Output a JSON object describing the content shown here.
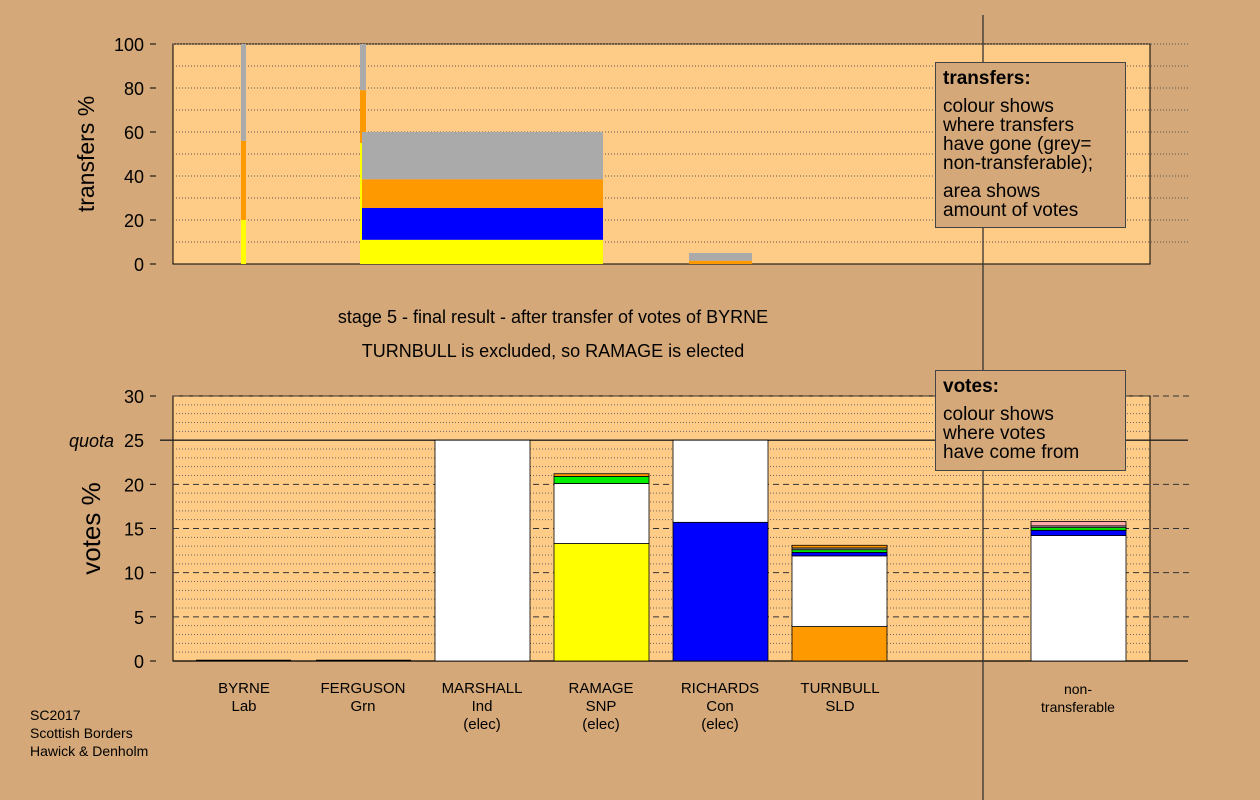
{
  "chart_data": [
    {
      "type": "bar",
      "stacked": true,
      "ylabel": "transfers %",
      "ylim": [
        0,
        100
      ],
      "yticks": [
        0,
        20,
        40,
        60,
        80,
        100
      ],
      "categories": [
        "BYRNE",
        "FERGUSON",
        "MARSHALL",
        "RAMAGE",
        "RICHARDS",
        "TURNBULL",
        "non-transferable"
      ],
      "bars": [
        {
          "category": "BYRNE",
          "segments": [
            {
              "color": "#ffff00",
              "value": 20
            },
            {
              "color": "#ff9900",
              "value": 36
            },
            {
              "color": "#aaaaaa",
              "value": 44
            }
          ]
        },
        {
          "category": "FERGUSON",
          "segments": [
            {
              "color": "#ffff00",
              "value": 55
            },
            {
              "color": "#ff9900",
              "value": 24
            },
            {
              "color": "#aaaaaa",
              "value": 21
            }
          ]
        },
        {
          "category": "TURNBULL",
          "segments": [
            {
              "color": "#ffff00",
              "value": 11
            },
            {
              "color": "#0000ff",
              "value": 14.5
            },
            {
              "color": "#ff9900",
              "value": 13
            },
            {
              "color": "#aaaaaa",
              "value": 21.5
            }
          ]
        },
        {
          "category": "non-transferable",
          "segments": [
            {
              "color": "#ff9900",
              "value": 1.5
            },
            {
              "color": "#aaaaaa",
              "value": 3.5
            }
          ]
        }
      ]
    },
    {
      "type": "bar",
      "stacked": true,
      "ylabel": "votes %",
      "ylim": [
        0,
        30
      ],
      "yticks": [
        0,
        5,
        10,
        15,
        20,
        25,
        30
      ],
      "quota": 25,
      "quota_label": "quota",
      "categories": [
        "BYRNE",
        "FERGUSON",
        "MARSHALL",
        "RAMAGE",
        "RICHARDS",
        "TURNBULL",
        "non-transferable"
      ],
      "bars": [
        {
          "category": "BYRNE",
          "segments": [
            {
              "color": "#ffffff",
              "value": 0
            }
          ]
        },
        {
          "category": "FERGUSON",
          "segments": [
            {
              "color": "#ffffff",
              "value": 0
            }
          ]
        },
        {
          "category": "MARSHALL",
          "segments": [
            {
              "color": "#ffffff",
              "value": 25
            }
          ]
        },
        {
          "category": "RAMAGE",
          "segments": [
            {
              "color": "#ffff00",
              "value": 13.3
            },
            {
              "color": "#ffffff",
              "value": 6.8
            },
            {
              "color": "#00ee00",
              "value": 0.8
            },
            {
              "color": "#ff9900",
              "value": 0.3
            }
          ]
        },
        {
          "category": "RICHARDS",
          "segments": [
            {
              "color": "#0000ff",
              "value": 15.7
            },
            {
              "color": "#ffffff",
              "value": 9.3
            }
          ]
        },
        {
          "category": "TURNBULL",
          "segments": [
            {
              "color": "#ff9900",
              "value": 3.9
            },
            {
              "color": "#ffffff",
              "value": 8.0
            },
            {
              "color": "#0000ff",
              "value": 0.4
            },
            {
              "color": "#00ee00",
              "value": 0.3
            },
            {
              "color": "#aaaaaa",
              "value": 0.2
            },
            {
              "color": "#ff9900",
              "value": 0.3
            }
          ]
        },
        {
          "category": "non-transferable",
          "segments": [
            {
              "color": "#ffffff",
              "value": 14.2
            },
            {
              "color": "#0000ff",
              "value": 0.6
            },
            {
              "color": "#00ee00",
              "value": 0.3
            },
            {
              "color": "#aaaaaa",
              "value": 0.2
            },
            {
              "color": "#ffaaaa",
              "value": 0.5
            }
          ]
        }
      ]
    }
  ],
  "colors": {
    "background": "#d4a878",
    "plot_area": "#ffcc88"
  },
  "stage_title": "stage 5 - final result - after transfer of votes of BYRNE",
  "stage_subtitle": "TURNBULL is excluded, so RAMAGE is elected",
  "transfers_legend": {
    "title": "transfers:",
    "para1": [
      "colour shows",
      "where transfers",
      "have gone (grey=",
      "non-transferable);"
    ],
    "para2": [
      "area shows",
      "amount of votes"
    ]
  },
  "votes_legend": {
    "title": "votes:",
    "para1": [
      "colour shows",
      "where votes",
      "have come from"
    ]
  },
  "candidates": [
    {
      "name": "BYRNE",
      "party": "Lab",
      "status": ""
    },
    {
      "name": "FERGUSON",
      "party": "Grn",
      "status": ""
    },
    {
      "name": "MARSHALL",
      "party": "Ind",
      "status": "(elec)"
    },
    {
      "name": "RAMAGE",
      "party": "SNP",
      "status": "(elec)"
    },
    {
      "name": "RICHARDS",
      "party": "Con",
      "status": "(elec)"
    },
    {
      "name": "TURNBULL",
      "party": "SLD",
      "status": ""
    }
  ],
  "nontransferable_label": [
    "non-",
    "transferable"
  ],
  "footer": [
    "SC2017",
    "Scottish Borders",
    "Hawick & Denholm"
  ]
}
